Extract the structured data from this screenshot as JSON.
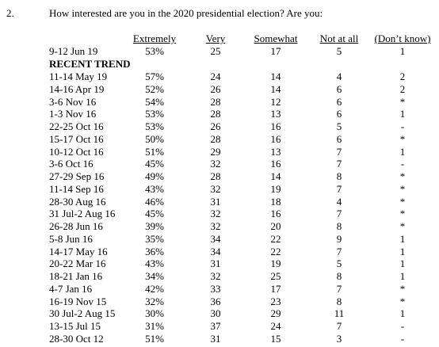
{
  "question": {
    "number": "2.",
    "text": "How interested are you in the 2020 presidential election?  Are you:"
  },
  "table": {
    "header": [
      "Extremely",
      "Very",
      "Somewhat",
      "Not at all",
      "(Don’t know)"
    ],
    "latest": [
      "9-12 Jun 19",
      "53%",
      "25",
      "17",
      "5",
      "1"
    ],
    "trend_label": "RECENT TREND",
    "trend": [
      [
        "11-14 May 19",
        "57%",
        "24",
        "14",
        "4",
        "2"
      ],
      [
        "14-16 Apr 19",
        "52%",
        "26",
        "14",
        "6",
        "2"
      ],
      [
        "3-6 Nov 16",
        "54%",
        "28",
        "12",
        "6",
        "*"
      ],
      [
        "1-3 Nov 16",
        "53%",
        "28",
        "13",
        "6",
        "1"
      ],
      [
        "22-25 Oct 16",
        "53%",
        "26",
        "16",
        "5",
        "-"
      ],
      [
        "15-17 Oct 16",
        "50%",
        "28",
        "16",
        "6",
        "*"
      ],
      [
        "10-12 Oct 16",
        "51%",
        "29",
        "13",
        "7",
        "1"
      ],
      [
        "3-6 Oct 16",
        "45%",
        "32",
        "16",
        "7",
        "-"
      ],
      [
        "27-29 Sep 16",
        "49%",
        "28",
        "14",
        "8",
        "*"
      ],
      [
        "11-14 Sep 16",
        "43%",
        "32",
        "19",
        "7",
        "*"
      ],
      [
        "28-30 Aug 16",
        "46%",
        "31",
        "18",
        "4",
        "*"
      ],
      [
        "31 Jul-2 Aug 16",
        "45%",
        "32",
        "16",
        "7",
        "*"
      ],
      [
        "26-28 Jun 16",
        "39%",
        "32",
        "20",
        "8",
        "*"
      ],
      [
        "5-8 Jun 16",
        "35%",
        "34",
        "22",
        "9",
        "1"
      ],
      [
        "14-17 May 16",
        "36%",
        "34",
        "22",
        "7",
        "1"
      ],
      [
        "20-22 Mar 16",
        "43%",
        "31",
        "19",
        "5",
        "1"
      ],
      [
        "18-21 Jan 16",
        "34%",
        "32",
        "25",
        "8",
        "1"
      ],
      [
        "4-7 Jan 16",
        "42%",
        "33",
        "17",
        "7",
        "*"
      ],
      [
        "16-19 Nov 15",
        "32%",
        "36",
        "23",
        "8",
        "*"
      ],
      [
        "30 Jul-2 Aug 15",
        "30%",
        "30",
        "29",
        "11",
        "1"
      ],
      [
        "13-15 Jul 15",
        "31%",
        "37",
        "24",
        "7",
        "-"
      ],
      [
        "28-30 Oct 12",
        "51%",
        "31",
        "15",
        "3",
        "-"
      ]
    ]
  }
}
